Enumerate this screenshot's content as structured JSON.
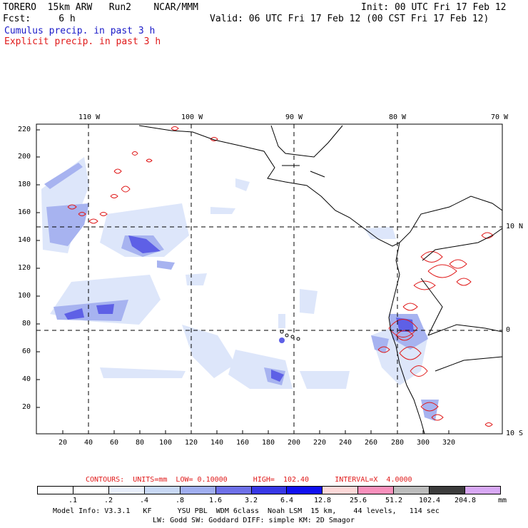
{
  "header": {
    "line1_left": "TORERO  15km ARW   Run2    NCAR/MMM",
    "line1_right": "Init: 00 UTC Fri 17 Feb 12",
    "line2_left": "Fcst:     6 h",
    "line2_right": "Valid: 06 UTC Fri 17 Feb 12 (00 CST Fri 17 Feb 12)",
    "cumulus_label": "Cumulus precip. in past 3 h",
    "explicit_label": "Explicit precip. in past 3 h"
  },
  "map": {
    "lon_labels": [
      "110 W",
      "100 W",
      "90 W",
      "80 W",
      "70 W"
    ],
    "lat_labels": [
      "10 N",
      "0",
      "10 S"
    ],
    "y_ticks": [
      "220",
      "200",
      "180",
      "160",
      "140",
      "120",
      "100",
      "80",
      "60",
      "40",
      "20"
    ],
    "x_ticks": [
      "20",
      "40",
      "60",
      "80",
      "100",
      "120",
      "140",
      "160",
      "180",
      "200",
      "220",
      "240",
      "260",
      "280",
      "300",
      "320"
    ]
  },
  "contours": {
    "text": "CONTOURS:  UNITS=mm  LOW= 0.10000      HIGH=  102.40      INTERVAL=X  4.0000"
  },
  "colorbar": {
    "labels": [
      ".1",
      ".2",
      ".4",
      ".8",
      "1.6",
      "3.2",
      "6.4",
      "12.8",
      "25.6",
      "51.2",
      "102.4",
      "204.8"
    ],
    "unit": "mm",
    "colors": [
      "#ffffff",
      "#ffffff",
      "#ffffff",
      "#e8eefa",
      "#c8d8f4",
      "#a0aef0",
      "#6e70e8",
      "#3838e6",
      "#1010f0",
      "#fcd8d8",
      "#f890bc",
      "#bcbcbc",
      "#3c3c3c",
      "#d8a8f4"
    ]
  },
  "model_info": {
    "line1": "Model Info: V3.3.1   KF      YSU PBL  WDM 6class  Noah LSM  15 km,    44 levels,   114 sec",
    "line2": "LW: Godd SW: Goddard DIFF: simple KM: 2D Smagor"
  }
}
